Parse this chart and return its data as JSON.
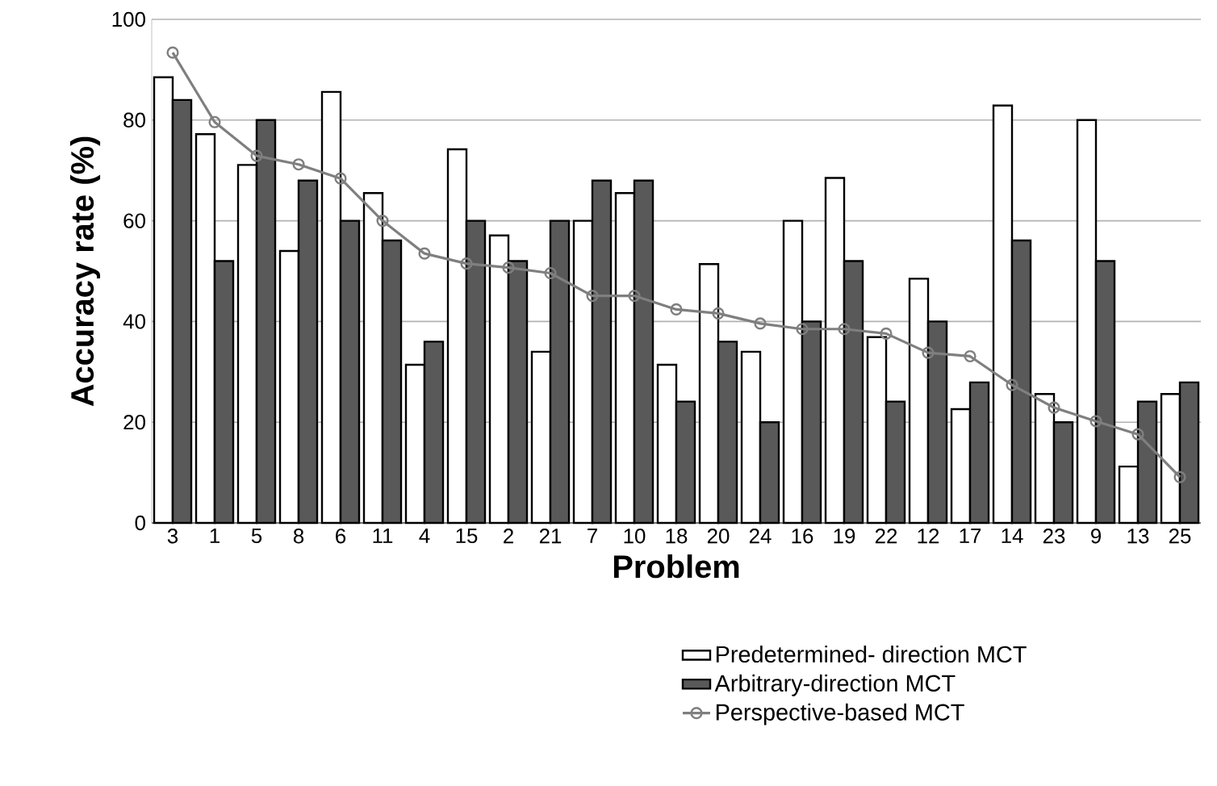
{
  "chart_data": {
    "type": "bar",
    "xlabel": "Problem",
    "ylabel": "Accuracy rate (%)",
    "categories": [
      "3",
      "1",
      "5",
      "8",
      "6",
      "11",
      "4",
      "15",
      "2",
      "21",
      "7",
      "10",
      "18",
      "20",
      "24",
      "16",
      "19",
      "22",
      "12",
      "17",
      "14",
      "23",
      "9",
      "13",
      "25"
    ],
    "series": [
      {
        "name": "Predetermined- direction MCT",
        "color": "#ffffff",
        "values": [
          88.5,
          77.2,
          71.1,
          54,
          85.6,
          65.5,
          31.4,
          74.2,
          57.1,
          34,
          60,
          65.5,
          31.4,
          51.4,
          34,
          60,
          68.5,
          36.9,
          48.5,
          22.6,
          82.9,
          25.6,
          80,
          11.2,
          25.6
        ]
      },
      {
        "name": "Arbitrary-direction MCT",
        "color": "#595959",
        "values": [
          84,
          52,
          80,
          68,
          60,
          56.1,
          36,
          60,
          52,
          60,
          68,
          68,
          24.1,
          36,
          20,
          40,
          52,
          24.1,
          40,
          27.9,
          56.1,
          20,
          52,
          24.1,
          27.9
        ]
      },
      {
        "name": "Perspective-based MCT",
        "type": "line",
        "color": "#7f7f7f",
        "values": [
          93.4,
          79.6,
          72.9,
          71.2,
          68.4,
          60,
          53.5,
          51.5,
          50.7,
          49.6,
          45.1,
          45.1,
          42.4,
          41.6,
          39.6,
          38.5,
          38.5,
          37.6,
          33.8,
          33.1,
          27.4,
          22.9,
          20.2,
          17.6,
          9.1
        ]
      }
    ],
    "ylim": [
      0,
      100
    ],
    "yticks": [
      0,
      20,
      40,
      60,
      80,
      100
    ],
    "grid": "y",
    "legend": "bottom right",
    "marker": "circle"
  }
}
